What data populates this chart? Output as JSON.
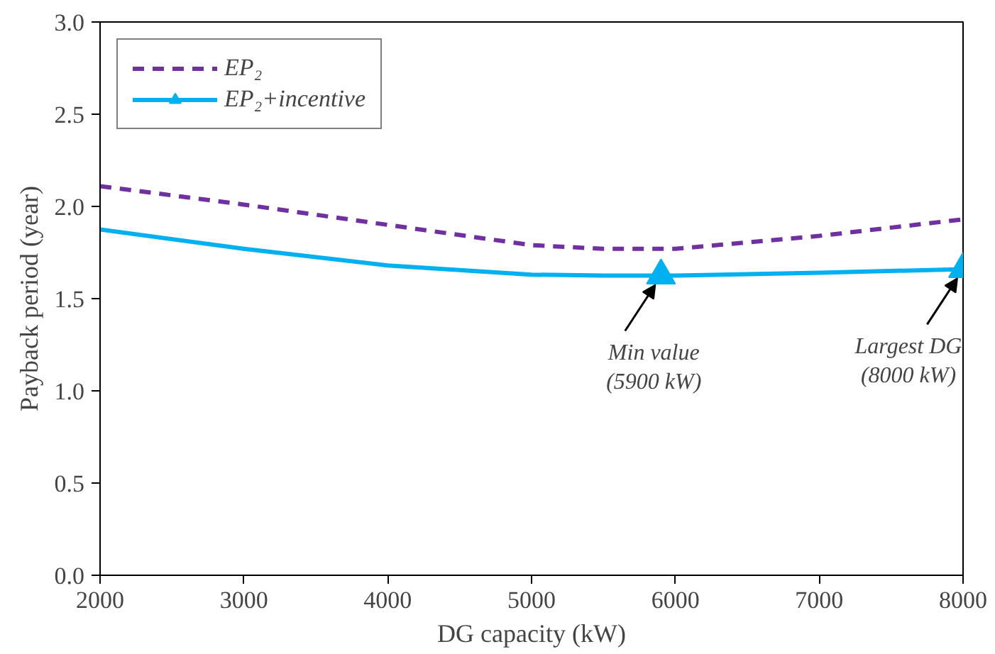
{
  "chart_data": {
    "type": "line",
    "xlabel": "DG capacity (kW)",
    "ylabel": "Payback period (year)",
    "x": [
      2000,
      3000,
      4000,
      5000,
      5500,
      5900,
      6000,
      7000,
      8000
    ],
    "series": [
      {
        "name": "EP₂",
        "color": "#7030a0",
        "line_style": "dashed",
        "marker": "none",
        "values": [
          2.11,
          2.01,
          1.9,
          1.79,
          1.77,
          1.77,
          1.77,
          1.84,
          1.93
        ]
      },
      {
        "name": "EP₂+incentive",
        "color": "#00b0f0",
        "line_style": "solid",
        "marker": "none",
        "values": [
          1.875,
          1.77,
          1.68,
          1.63,
          1.625,
          1.625,
          1.625,
          1.64,
          1.66
        ]
      },
      {
        "type": "scatter",
        "color": "#00b0f0",
        "marker": "triangle",
        "x": [
          5900,
          8000
        ],
        "values": [
          1.625,
          1.66
        ]
      }
    ],
    "annotations": [
      {
        "text": "Min value\n(5900 kW)",
        "x": 5900,
        "y": 1.625
      },
      {
        "text": "Largest DG\n(8000 kW)",
        "x": 8000,
        "y": 1.66
      }
    ],
    "xlim": [
      2000,
      8000
    ],
    "xticks": [
      2000,
      3000,
      4000,
      5000,
      6000,
      7000,
      8000
    ],
    "ylim": [
      0,
      3.0
    ],
    "yticks": [
      {
        "value": 0,
        "label": "0.0"
      },
      {
        "value": 0.5,
        "label": "0.5"
      },
      {
        "value": 1,
        "label": "1.0"
      },
      {
        "value": 1.5,
        "label": "1.5"
      },
      {
        "value": 2,
        "label": "2.0"
      },
      {
        "value": 2.5,
        "label": "2.5"
      },
      {
        "value": 3,
        "label": "3.0"
      }
    ],
    "grid": false,
    "legend": "top left"
  }
}
